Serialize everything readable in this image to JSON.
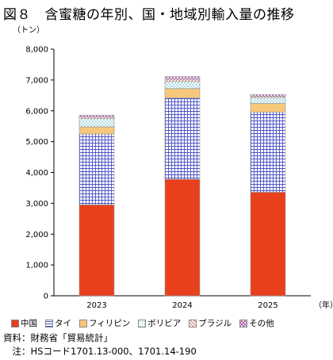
{
  "title": "図８　含蜜糖の年別、国・地域別輸入量の推移",
  "chart_data": {
    "type": "bar",
    "stacked": true,
    "ylabel": "（トン）",
    "xlabel": "（年）",
    "ylim": [
      0,
      8000
    ],
    "yticks": [
      "0",
      "1,000",
      "2,000",
      "3,000",
      "4,000",
      "5,000",
      "6,000",
      "7,000",
      "8,000"
    ],
    "ytick_values": [
      0,
      1000,
      2000,
      3000,
      4000,
      5000,
      6000,
      7000,
      8000
    ],
    "categories": [
      "2023",
      "2024",
      "2025"
    ],
    "series": [
      {
        "name": "中国",
        "values": [
          2950,
          3780,
          3360
        ],
        "color": "#e8401c",
        "pattern": "solid"
      },
      {
        "name": "タイ",
        "values": [
          2300,
          2640,
          2600
        ],
        "color": "#5a5fc0",
        "pattern": "grid"
      },
      {
        "name": "フィリピン",
        "values": [
          230,
          300,
          280
        ],
        "color": "#f7c77a",
        "pattern": "solid"
      },
      {
        "name": "ボリビア",
        "values": [
          270,
          230,
          190
        ],
        "color": "#66c0c8",
        "pattern": "dots"
      },
      {
        "name": "ブラジル",
        "values": [
          50,
          70,
          40
        ],
        "color": "#e39a8e",
        "pattern": "hatch"
      },
      {
        "name": "その他",
        "values": [
          60,
          90,
          60
        ],
        "color": "#b05aa8",
        "pattern": "cross"
      }
    ],
    "grid": false,
    "legend_position": "bottom"
  },
  "source": "資料：財務省「貿易統計」",
  "note": "　注：HSコード1701.13-000、1701.14-190"
}
